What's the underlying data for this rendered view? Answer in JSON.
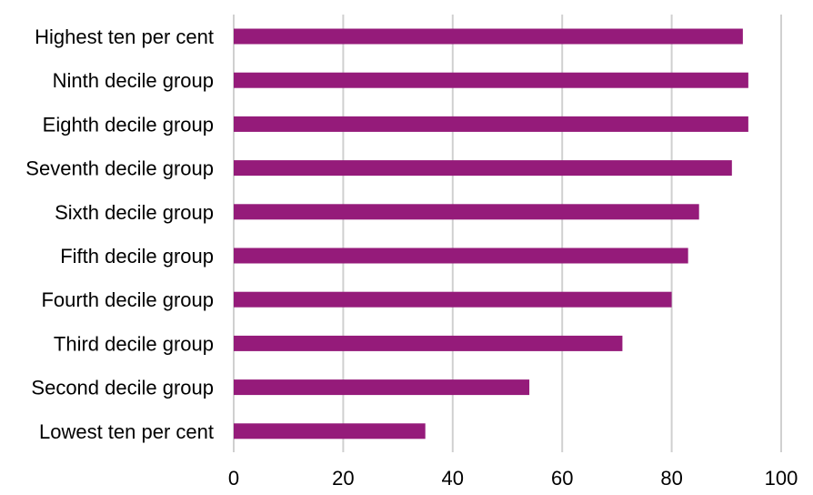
{
  "colors": {
    "bar": "#951b7a",
    "grid": "#d0d0d0"
  },
  "chart_data": {
    "type": "bar",
    "orientation": "horizontal",
    "title": "",
    "xlabel": "",
    "ylabel": "",
    "categories": [
      "Highest ten per cent",
      "Ninth decile group",
      "Eighth decile group",
      "Seventh decile group",
      "Sixth decile group",
      "Fifth decile group",
      "Fourth decile group",
      "Third decile group",
      "Second decile group",
      "Lowest ten per cent"
    ],
    "values": [
      93,
      94,
      94,
      91,
      85,
      83,
      80,
      71,
      54,
      35
    ],
    "xlim": [
      0,
      100
    ],
    "xticks": [
      0,
      20,
      40,
      60,
      80,
      100
    ],
    "xtick_labels": [
      "0",
      "20",
      "40",
      "60",
      "80",
      "100"
    ],
    "grid": "vertical",
    "legend": "none"
  }
}
